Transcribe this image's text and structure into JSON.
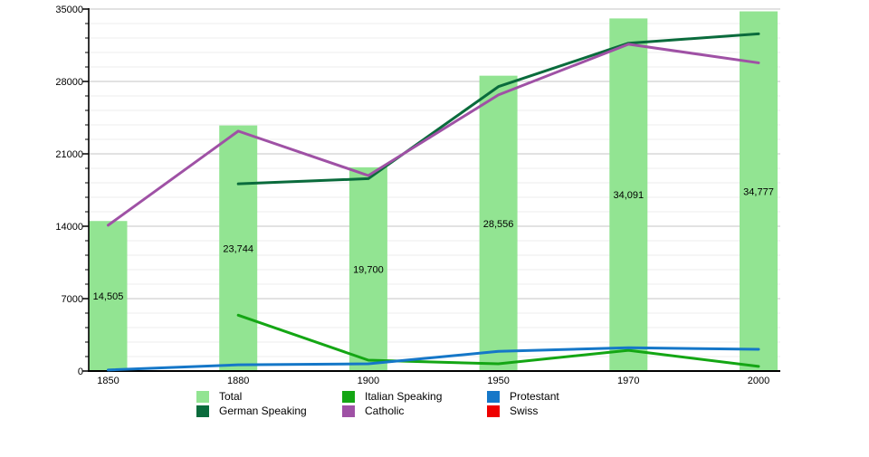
{
  "page": {
    "background": "#ffffff"
  },
  "chart_data": {
    "type": "bar+line",
    "title": "",
    "xlabel": "",
    "ylabel": "",
    "categories": [
      "1850",
      "1880",
      "1900",
      "1950",
      "1970",
      "2000"
    ],
    "ylim": [
      0,
      35000
    ],
    "grid": "on",
    "yticks": {
      "major_step": 7000,
      "minor_step": 1400,
      "labels": [
        "0",
        "7000",
        "14000",
        "21000",
        "28000",
        "35000"
      ]
    },
    "bar_series": {
      "name": "Total",
      "color": "#92e492",
      "values": [
        14505,
        23744,
        19700,
        28556,
        34091,
        34777
      ],
      "value_labels": [
        "14,505",
        "23,744",
        "19,700",
        "28,556",
        "34,091",
        "34,777"
      ]
    },
    "line_series": [
      {
        "name": "German Speaking",
        "color": "#0a6b3c",
        "values": [
          null,
          18100,
          18600,
          27500,
          31700,
          32600
        ]
      },
      {
        "name": "Catholic",
        "color": "#9f51a5",
        "values": [
          14100,
          23200,
          18900,
          26700,
          31600,
          29800
        ]
      },
      {
        "name": "Italian Speaking",
        "color": "#14a614",
        "values": [
          null,
          5400,
          1050,
          700,
          2000,
          450
        ]
      },
      {
        "name": "Protestant",
        "color": "#1577c8",
        "values": [
          100,
          600,
          700,
          1900,
          2250,
          2100
        ]
      },
      {
        "name": "Swiss",
        "color": "#ee0000",
        "values": [
          null,
          null,
          null,
          null,
          null,
          null
        ]
      }
    ],
    "legend": {
      "position": "bottom",
      "columns": [
        [
          {
            "label": "Total",
            "color": "#92e492"
          },
          {
            "label": "German Speaking",
            "color": "#0a6b3c"
          }
        ],
        [
          {
            "label": "Italian Speaking",
            "color": "#14a614"
          },
          {
            "label": "Catholic",
            "color": "#9f51a5"
          }
        ],
        [
          {
            "label": "Protestant",
            "color": "#1577c8"
          },
          {
            "label": "Swiss",
            "color": "#ee0000"
          }
        ]
      ]
    },
    "axis_colors": {
      "axis": "#000000",
      "major_grid": "#c6c6c6",
      "minor_grid": "#ececec"
    }
  }
}
